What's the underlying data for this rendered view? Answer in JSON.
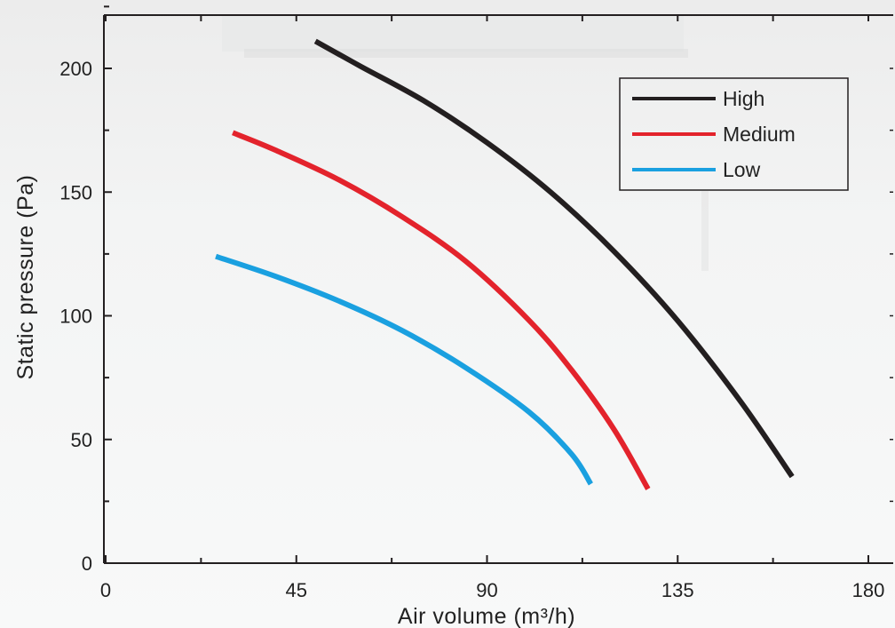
{
  "chart_data": {
    "type": "line",
    "xlabel": "Air volume  (m³/h)",
    "ylabel": "Static pressure  (Pa)",
    "xlim": [
      0,
      180
    ],
    "ylim": [
      0,
      200
    ],
    "x_ticks": [
      0,
      45,
      90,
      135,
      180
    ],
    "y_ticks": [
      0,
      50,
      100,
      150,
      200
    ],
    "grid": false,
    "legend_position": "top-right",
    "series": [
      {
        "name": "High",
        "color": "#231f20",
        "x": [
          49.5,
          60,
          75,
          90,
          105,
          120,
          135,
          150,
          162
        ],
        "y": [
          211,
          201,
          187,
          170,
          150,
          126,
          98,
          65,
          35
        ]
      },
      {
        "name": "Medium",
        "color": "#e3232c",
        "x": [
          30,
          40,
          55,
          70,
          85,
          100,
          110,
          120,
          128
        ],
        "y": [
          174,
          167,
          155,
          140,
          122,
          98,
          78,
          54,
          30
        ]
      },
      {
        "name": "Low",
        "color": "#1aa0e0",
        "x": [
          26,
          40,
          55,
          70,
          85,
          100,
          110,
          114.5
        ],
        "y": [
          124,
          116,
          106,
          94,
          79,
          61,
          44,
          32
        ]
      }
    ]
  }
}
